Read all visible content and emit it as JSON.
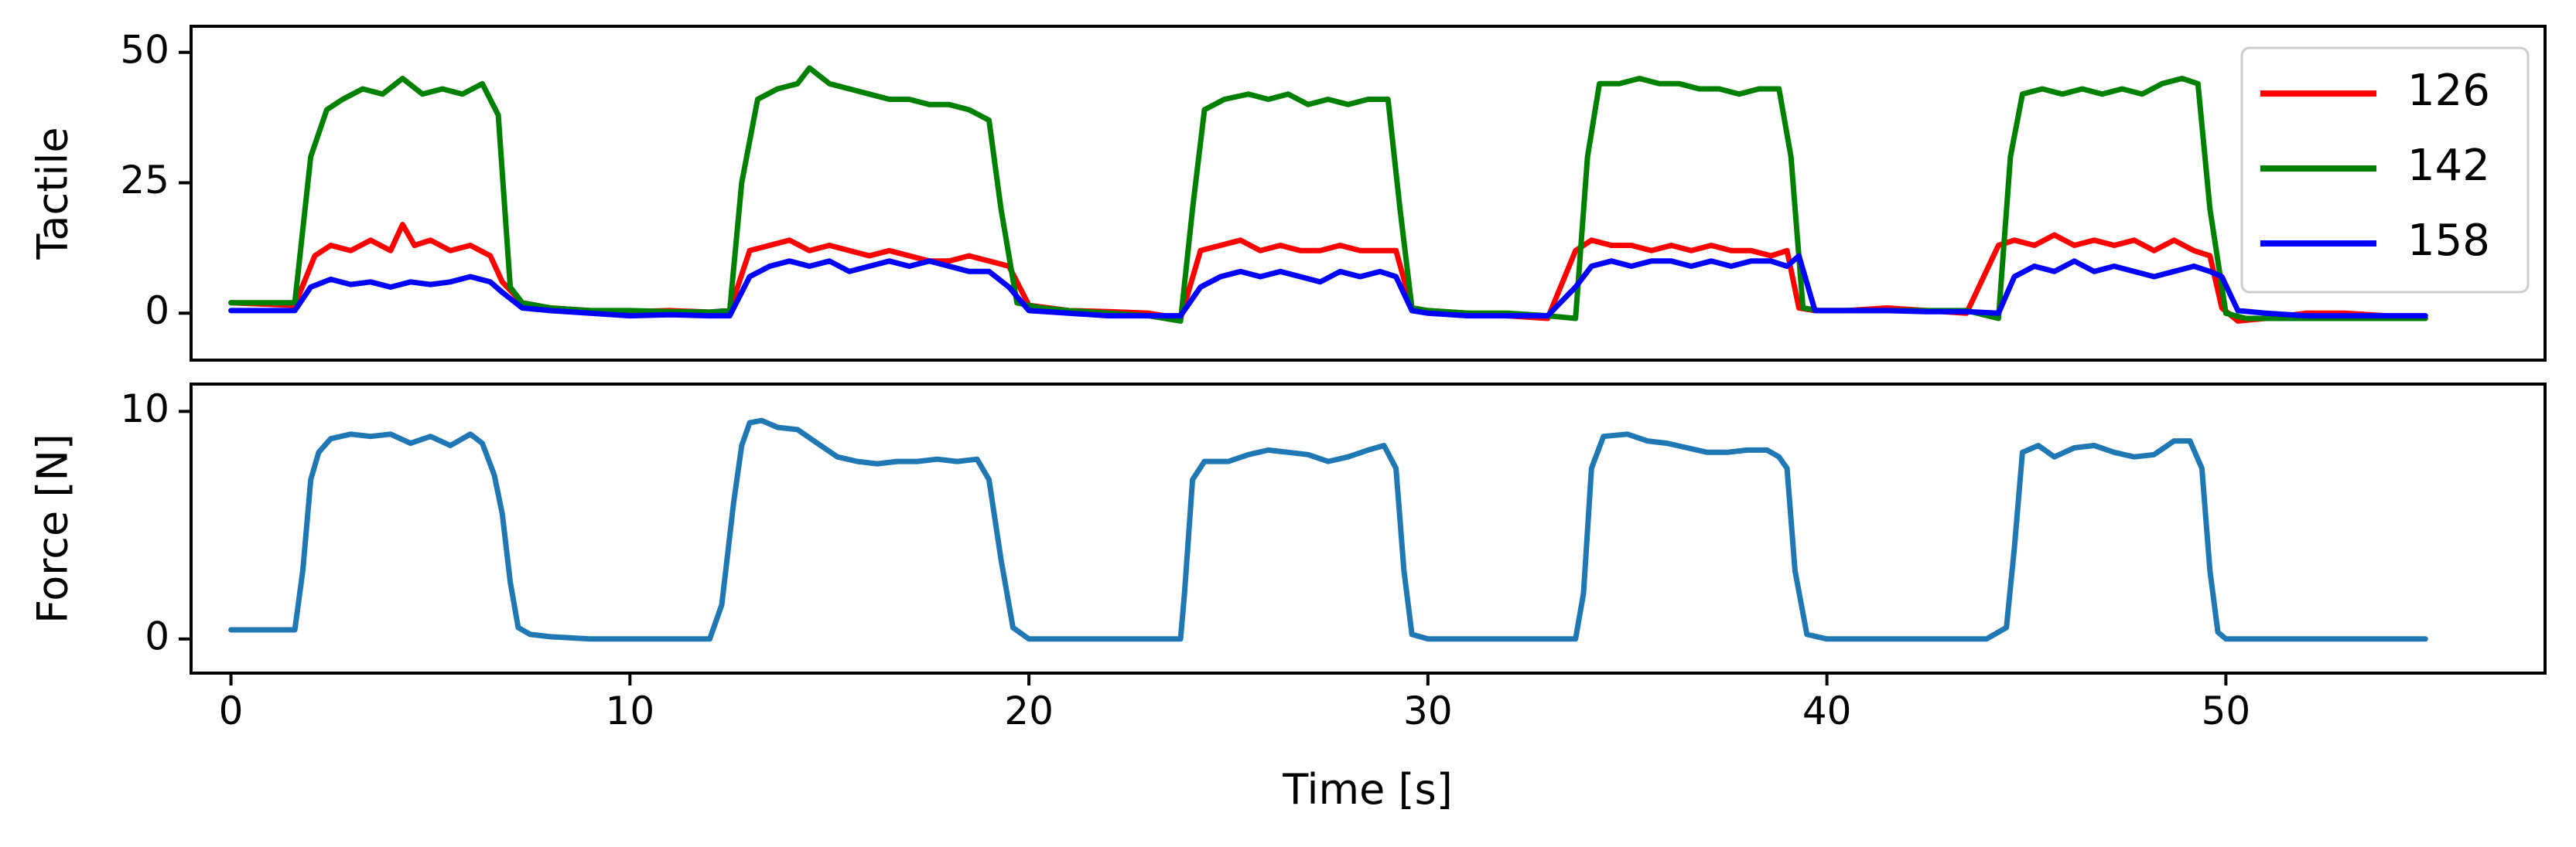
{
  "chart_data": [
    {
      "type": "line",
      "ylabel": "Tactile",
      "xlim": [
        -1,
        58
      ],
      "ylim": [
        -9,
        55
      ],
      "yticks": [
        0,
        25,
        50
      ],
      "legend_position": "top-right",
      "grid": false,
      "series": [
        {
          "name": "126",
          "color": "#ff0000",
          "x": [
            0,
            1.6,
            2.1,
            2.5,
            3.0,
            3.5,
            4.0,
            4.3,
            4.6,
            5.0,
            5.5,
            6.0,
            6.5,
            6.8,
            7.3,
            8.0,
            9.0,
            10.0,
            11.0,
            12.0,
            12.5,
            13.0,
            13.5,
            14.0,
            14.5,
            15.0,
            15.5,
            16.0,
            16.5,
            17.0,
            17.5,
            18.0,
            18.5,
            19.0,
            19.5,
            20.0,
            21.0,
            22.0,
            23.0,
            23.8,
            24.3,
            24.8,
            25.3,
            25.8,
            26.3,
            26.8,
            27.3,
            27.8,
            28.3,
            28.8,
            29.2,
            29.6,
            30.0,
            31.0,
            32.0,
            33.0,
            33.7,
            34.1,
            34.6,
            35.1,
            35.6,
            36.1,
            36.6,
            37.1,
            37.6,
            38.1,
            38.6,
            39.0,
            39.3,
            39.7,
            40.5,
            41.5,
            42.5,
            43.5,
            44.3,
            44.7,
            45.2,
            45.7,
            46.2,
            46.7,
            47.2,
            47.7,
            48.2,
            48.7,
            49.2,
            49.6,
            49.9,
            50.3,
            51.0,
            52.0,
            53.0,
            54.0,
            55.0
          ],
          "y": [
            2,
            1.5,
            11,
            13,
            12,
            14,
            12,
            17,
            13,
            14,
            12,
            13,
            11,
            6,
            2,
            1,
            0.5,
            0.3,
            0.5,
            0.2,
            0.5,
            12,
            13,
            14,
            12,
            13,
            12,
            11,
            12,
            11,
            10,
            10,
            11,
            10,
            9,
            1.5,
            0.5,
            0.3,
            0,
            -1,
            12,
            13,
            14,
            12,
            13,
            12,
            12,
            13,
            12,
            12,
            12,
            1,
            0.5,
            0,
            -0.5,
            -1,
            12,
            14,
            13,
            13,
            12,
            13,
            12,
            13,
            12,
            12,
            11,
            12,
            1,
            0.5,
            0.5,
            1,
            0.5,
            0,
            13,
            14,
            13,
            15,
            13,
            14,
            13,
            14,
            12,
            14,
            12,
            11,
            1,
            -1.5,
            -1,
            0,
            0,
            -0.5,
            -1
          ]
        },
        {
          "name": "142",
          "color": "#008000",
          "x": [
            0,
            1.6,
            2.0,
            2.4,
            2.8,
            3.3,
            3.8,
            4.3,
            4.8,
            5.3,
            5.8,
            6.3,
            6.7,
            7.0,
            7.3,
            8.0,
            9.0,
            10.0,
            11.0,
            12.0,
            12.5,
            12.8,
            13.2,
            13.7,
            14.2,
            14.5,
            15.0,
            15.5,
            16.0,
            16.5,
            17.0,
            17.5,
            18.0,
            18.5,
            19.0,
            19.3,
            19.7,
            20.3,
            21.0,
            22.0,
            23.0,
            23.8,
            24.1,
            24.4,
            24.9,
            25.5,
            26.0,
            26.5,
            27.0,
            27.5,
            28.0,
            28.5,
            29.0,
            29.3,
            29.6,
            30.0,
            31.0,
            32.0,
            33.0,
            33.7,
            34.0,
            34.3,
            34.8,
            35.3,
            35.8,
            36.3,
            36.8,
            37.3,
            37.8,
            38.3,
            38.8,
            39.1,
            39.4,
            39.8,
            40.5,
            41.5,
            42.5,
            43.5,
            44.3,
            44.6,
            44.9,
            45.4,
            45.9,
            46.4,
            46.9,
            47.4,
            47.9,
            48.4,
            48.9,
            49.3,
            49.6,
            50.0,
            50.5,
            51.0,
            52.0,
            53.0,
            54.0,
            55.0
          ],
          "y": [
            2,
            2,
            30,
            39,
            41,
            43,
            42,
            45,
            42,
            43,
            42,
            44,
            38,
            5,
            2,
            1,
            0.5,
            0.5,
            0.3,
            0.2,
            0.5,
            25,
            41,
            43,
            44,
            47,
            44,
            43,
            42,
            41,
            41,
            40,
            40,
            39,
            37,
            20,
            2,
            1,
            0.5,
            0,
            -0.5,
            -1.5,
            20,
            39,
            41,
            42,
            41,
            42,
            40,
            41,
            40,
            41,
            41,
            20,
            1,
            0.5,
            0,
            0,
            -0.5,
            -1,
            30,
            44,
            44,
            45,
            44,
            44,
            43,
            43,
            42,
            43,
            43,
            30,
            1,
            0.5,
            0.5,
            0.5,
            0.5,
            0.5,
            -1,
            30,
            42,
            43,
            42,
            43,
            42,
            43,
            42,
            44,
            45,
            44,
            20,
            0,
            -1,
            -1,
            -1,
            -1,
            -1,
            -1
          ]
        },
        {
          "name": "158",
          "color": "#0000ff",
          "x": [
            0,
            1.6,
            2.0,
            2.5,
            3.0,
            3.5,
            4.0,
            4.5,
            5.0,
            5.5,
            6.0,
            6.5,
            6.8,
            7.3,
            8.0,
            9.0,
            10.0,
            11.0,
            12.0,
            12.5,
            13.0,
            13.5,
            14.0,
            14.5,
            15.0,
            15.5,
            16.0,
            16.5,
            17.0,
            17.5,
            18.0,
            18.5,
            19.0,
            19.5,
            20.0,
            21.0,
            22.0,
            23.0,
            23.8,
            24.3,
            24.8,
            25.3,
            25.8,
            26.3,
            26.8,
            27.3,
            27.8,
            28.3,
            28.8,
            29.2,
            29.6,
            30.0,
            31.0,
            32.0,
            33.0,
            33.7,
            34.1,
            34.6,
            35.1,
            35.6,
            36.1,
            36.6,
            37.1,
            37.6,
            38.1,
            38.6,
            39.0,
            39.3,
            39.7,
            40.5,
            41.5,
            42.5,
            43.5,
            44.3,
            44.7,
            45.2,
            45.7,
            46.2,
            46.7,
            47.2,
            47.7,
            48.2,
            48.7,
            49.2,
            49.6,
            49.9,
            50.3,
            51.0,
            52.0,
            53.0,
            54.0,
            55.0
          ],
          "y": [
            0.5,
            0.5,
            5,
            6.5,
            5.5,
            6,
            5,
            6,
            5.5,
            6,
            7,
            6,
            4,
            1,
            0.5,
            0,
            -0.5,
            -0.3,
            -0.5,
            -0.5,
            7,
            9,
            10,
            9,
            10,
            8,
            9,
            10,
            9,
            10,
            9,
            8,
            8,
            5,
            0.5,
            0,
            -0.5,
            -0.5,
            -0.5,
            5,
            7,
            8,
            7,
            8,
            7,
            6,
            8,
            7,
            8,
            7,
            0.5,
            0,
            -0.5,
            -0.5,
            -0.5,
            5,
            9,
            10,
            9,
            10,
            10,
            9,
            10,
            9,
            10,
            10,
            9,
            11,
            0.5,
            0.5,
            0.5,
            0.3,
            0.3,
            0,
            7,
            9,
            8,
            10,
            8,
            9,
            8,
            7,
            8,
            9,
            8,
            7,
            0.5,
            0,
            -0.5,
            -0.5,
            -0.5,
            -0.5
          ]
        }
      ]
    },
    {
      "type": "line",
      "xlabel": "Time [s]",
      "ylabel": "Force [N]",
      "xlim": [
        -1,
        58
      ],
      "ylim": [
        -1.5,
        11.2
      ],
      "xticks": [
        0,
        10,
        20,
        30,
        40,
        50
      ],
      "yticks": [
        0,
        10
      ],
      "grid": false,
      "series": [
        {
          "color": "#1f77b4",
          "x": [
            0,
            1.6,
            1.8,
            2.0,
            2.2,
            2.5,
            3.0,
            3.5,
            4.0,
            4.5,
            5.0,
            5.5,
            6.0,
            6.3,
            6.6,
            6.8,
            7.0,
            7.2,
            7.5,
            8.0,
            9.0,
            10.0,
            11.0,
            12.0,
            12.3,
            12.6,
            12.8,
            13.0,
            13.3,
            13.7,
            14.2,
            14.7,
            15.2,
            15.7,
            16.2,
            16.7,
            17.2,
            17.7,
            18.2,
            18.7,
            19.0,
            19.3,
            19.6,
            20.0,
            21.0,
            22.0,
            23.0,
            23.8,
            23.9,
            24.1,
            24.4,
            25.0,
            25.5,
            26.0,
            26.5,
            27.0,
            27.5,
            28.0,
            28.5,
            28.9,
            29.2,
            29.4,
            29.6,
            30.0,
            31.0,
            32.0,
            33.0,
            33.7,
            33.9,
            34.1,
            34.4,
            35.0,
            35.5,
            36.0,
            36.5,
            37.0,
            37.5,
            38.0,
            38.5,
            38.8,
            39.0,
            39.2,
            39.5,
            40.0,
            41.0,
            42.0,
            43.0,
            44.0,
            44.5,
            44.7,
            44.9,
            45.3,
            45.7,
            46.2,
            46.7,
            47.2,
            47.7,
            48.2,
            48.7,
            49.1,
            49.4,
            49.6,
            49.8,
            50.0,
            51.0,
            52.0,
            53.0,
            54.0,
            55.0
          ],
          "y": [
            0.4,
            0.4,
            3,
            7,
            8.2,
            8.8,
            9.0,
            8.9,
            9.0,
            8.6,
            8.9,
            8.5,
            9.0,
            8.6,
            7.2,
            5.5,
            2.5,
            0.5,
            0.2,
            0.1,
            0,
            0,
            0,
            0,
            1.5,
            6,
            8.5,
            9.5,
            9.6,
            9.3,
            9.2,
            8.6,
            8.0,
            7.8,
            7.7,
            7.8,
            7.8,
            7.9,
            7.8,
            7.9,
            7.0,
            3.5,
            0.5,
            0,
            0,
            0,
            0,
            0,
            2,
            7,
            7.8,
            7.8,
            8.1,
            8.3,
            8.2,
            8.1,
            7.8,
            8.0,
            8.3,
            8.5,
            7.5,
            3,
            0.2,
            0,
            0,
            0,
            0,
            0,
            2,
            7.5,
            8.9,
            9.0,
            8.7,
            8.6,
            8.4,
            8.2,
            8.2,
            8.3,
            8.3,
            8.0,
            7.5,
            3,
            0.2,
            0,
            0,
            0,
            0,
            0,
            0.5,
            4,
            8.2,
            8.5,
            8.0,
            8.4,
            8.5,
            8.2,
            8.0,
            8.1,
            8.7,
            8.7,
            7.5,
            3,
            0.3,
            0,
            0,
            0,
            0,
            0,
            0
          ]
        }
      ]
    }
  ]
}
